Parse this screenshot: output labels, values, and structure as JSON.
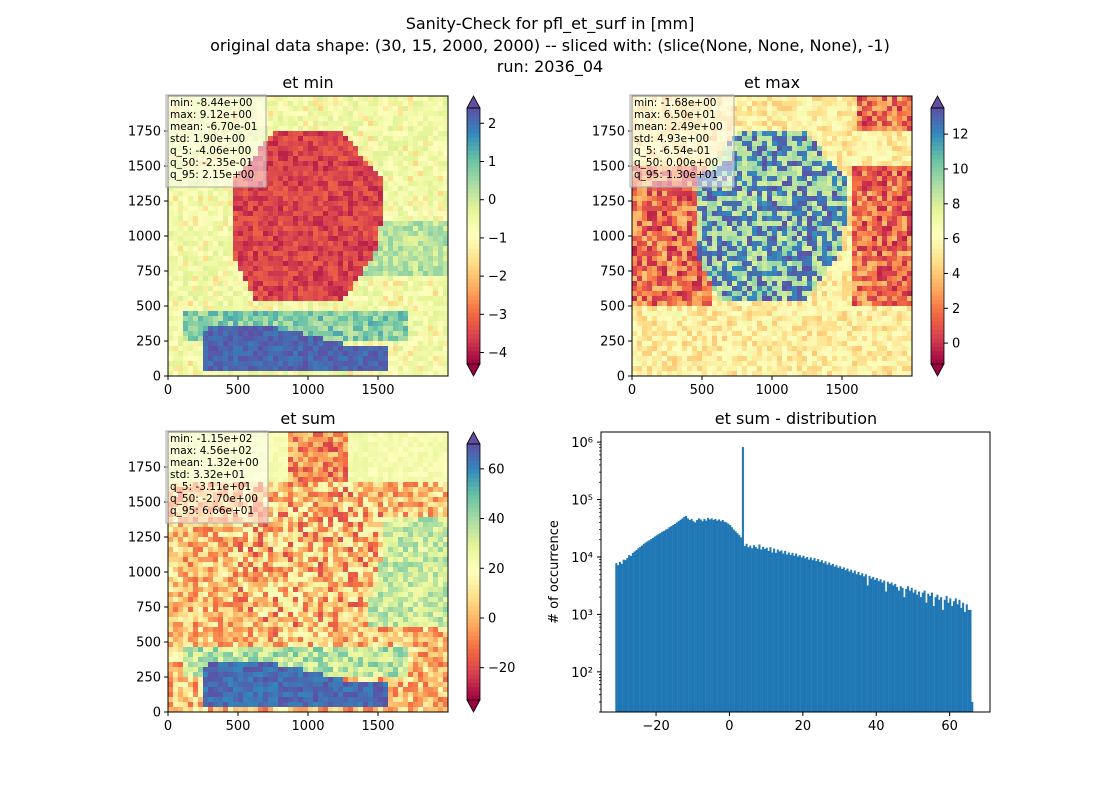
{
  "figure": {
    "title_lines": [
      "Sanity-Check for pfl_et_surf in [mm]",
      "original data shape: (30, 15, 2000, 2000) -- sliced with: (slice(None, None, None), -1)",
      "run: 2036_04"
    ]
  },
  "colors": {
    "spectral": [
      "#9e0142",
      "#d53e4f",
      "#f46d43",
      "#fdae61",
      "#fee08b",
      "#ffffbf",
      "#e6f598",
      "#abdda4",
      "#66c2a5",
      "#3288bd",
      "#5e4fa2"
    ],
    "hist_bar": "#1f77b4"
  },
  "chart_data": [
    {
      "id": "et_min",
      "type": "heatmap",
      "title": "et min",
      "xlim": [
        0,
        2000
      ],
      "ylim": [
        0,
        2000
      ],
      "xticks": [
        "0",
        "500",
        "1000",
        "1500"
      ],
      "yticks": [
        "0",
        "250",
        "500",
        "750",
        "1000",
        "1250",
        "1500",
        "1750"
      ],
      "colorbar": {
        "range": [
          -4.3,
          2.4
        ],
        "ticks": [
          "−4",
          "−3",
          "−2",
          "−1",
          "0",
          "1",
          "2"
        ],
        "tick_values": [
          -4,
          -3,
          -2,
          -1,
          0,
          1,
          2
        ],
        "extend": "both"
      },
      "stats": [
        "min: -8.44e+00",
        "max: 9.12e+00",
        "mean: -6.70e-01",
        "std: 1.90e+00",
        "q_5: -4.06e+00",
        "q_50: -2.35e-01",
        "q_95: 2.15e+00"
      ]
    },
    {
      "id": "et_max",
      "type": "heatmap",
      "title": "et max",
      "xlim": [
        0,
        2000
      ],
      "ylim": [
        0,
        2000
      ],
      "xticks": [
        "0",
        "500",
        "1000",
        "1500"
      ],
      "yticks": [
        "0",
        "250",
        "500",
        "750",
        "1000",
        "1250",
        "1500",
        "1750"
      ],
      "colorbar": {
        "range": [
          -1.2,
          13.5
        ],
        "ticks": [
          "0",
          "2",
          "4",
          "6",
          "8",
          "10",
          "12"
        ],
        "tick_values": [
          0,
          2,
          4,
          6,
          8,
          10,
          12
        ],
        "extend": "both"
      },
      "stats": [
        "min: -1.68e+00",
        "max: 6.50e+01",
        "mean: 2.49e+00",
        "std: 4.93e+00",
        "q_5: -6.54e-01",
        "q_50: 0.00e+00",
        "q_95: 1.30e+01"
      ]
    },
    {
      "id": "et_sum",
      "type": "heatmap",
      "title": "et sum",
      "xlim": [
        0,
        2000
      ],
      "ylim": [
        0,
        2000
      ],
      "xticks": [
        "0",
        "500",
        "1000",
        "1500"
      ],
      "yticks": [
        "0",
        "250",
        "500",
        "750",
        "1000",
        "1250",
        "1500",
        "1750"
      ],
      "colorbar": {
        "range": [
          -33,
          70
        ],
        "ticks": [
          "−20",
          "0",
          "20",
          "40",
          "60"
        ],
        "tick_values": [
          -20,
          0,
          20,
          40,
          60
        ],
        "extend": "both"
      },
      "stats": [
        "min: -1.15e+02",
        "max: 4.56e+02",
        "mean: 1.32e+00",
        "std: 3.32e+01",
        "q_5: -3.11e+01",
        "q_50: -2.70e+00",
        "q_95: 6.66e+01"
      ]
    },
    {
      "id": "et_sum_dist",
      "type": "bar",
      "title": "et sum - distribution",
      "xlabel": "",
      "ylabel": "# of occurrence",
      "yscale": "log",
      "xlim": [
        -35,
        71
      ],
      "ylim": [
        20,
        1500000
      ],
      "xticks": [
        "−20",
        "0",
        "20",
        "40",
        "60"
      ],
      "xtick_values": [
        -20,
        0,
        20,
        40,
        60
      ],
      "yticks": [
        "10²",
        "10³",
        "10⁴",
        "10⁵",
        "10⁶"
      ],
      "ytick_values": [
        100,
        1000,
        10000,
        100000,
        1000000
      ],
      "bins": {
        "start": -31.1,
        "width": 0.5,
        "count": 195
      },
      "counts": [
        7800,
        7200,
        8200,
        7600,
        9000,
        8800,
        9600,
        10800,
        10400,
        11800,
        12500,
        13200,
        14200,
        15000,
        15800,
        17000,
        17800,
        18800,
        19500,
        20500,
        21500,
        22800,
        23800,
        25000,
        26000,
        27500,
        28500,
        30000,
        31000,
        33000,
        34500,
        36000,
        37500,
        40000,
        42000,
        44500,
        47000,
        50000,
        52000,
        47000,
        44000,
        46000,
        42000,
        40000,
        44000,
        47000,
        45000,
        42000,
        46000,
        43000,
        48000,
        45000,
        47000,
        44000,
        46000,
        43000,
        45000,
        42000,
        44000,
        41000,
        40000,
        38000,
        36000,
        33000,
        30000,
        28000,
        26000,
        24000,
        22000,
        820000,
        15500,
        17000,
        14800,
        15800,
        14200,
        16000,
        15000,
        14000,
        16500,
        13500,
        15000,
        13800,
        14500,
        12800,
        14800,
        12000,
        14000,
        11800,
        13500,
        12500,
        13000,
        11500,
        12800,
        11000,
        12000,
        10800,
        11800,
        10500,
        11500,
        10200,
        10800,
        9800,
        10500,
        9500,
        10000,
        9000,
        9800,
        8800,
        9600,
        8500,
        9200,
        8200,
        8800,
        7800,
        8400,
        7400,
        8000,
        7200,
        7600,
        6800,
        7200,
        6500,
        6900,
        6200,
        6600,
        5900,
        6300,
        5600,
        6000,
        5300,
        5800,
        5000,
        5500,
        4800,
        5200,
        4600,
        5000,
        3200,
        4700,
        4200,
        4500,
        4000,
        4300,
        3800,
        4100,
        3600,
        3900,
        2500,
        3700,
        3400,
        3600,
        3200,
        3400,
        3000,
        2600,
        3100,
        2900,
        2000,
        2800,
        3100,
        2600,
        2900,
        2400,
        2700,
        2200,
        2500,
        2000,
        2400,
        2600,
        1600,
        2300,
        2100,
        2400,
        1400,
        2000,
        2200,
        1800,
        2000,
        1200,
        1800,
        2100,
        1600,
        1900,
        1400,
        1700,
        1900,
        1500,
        1800,
        1300,
        1600,
        1100,
        1500,
        1200,
        1200,
        30
      ]
    }
  ]
}
